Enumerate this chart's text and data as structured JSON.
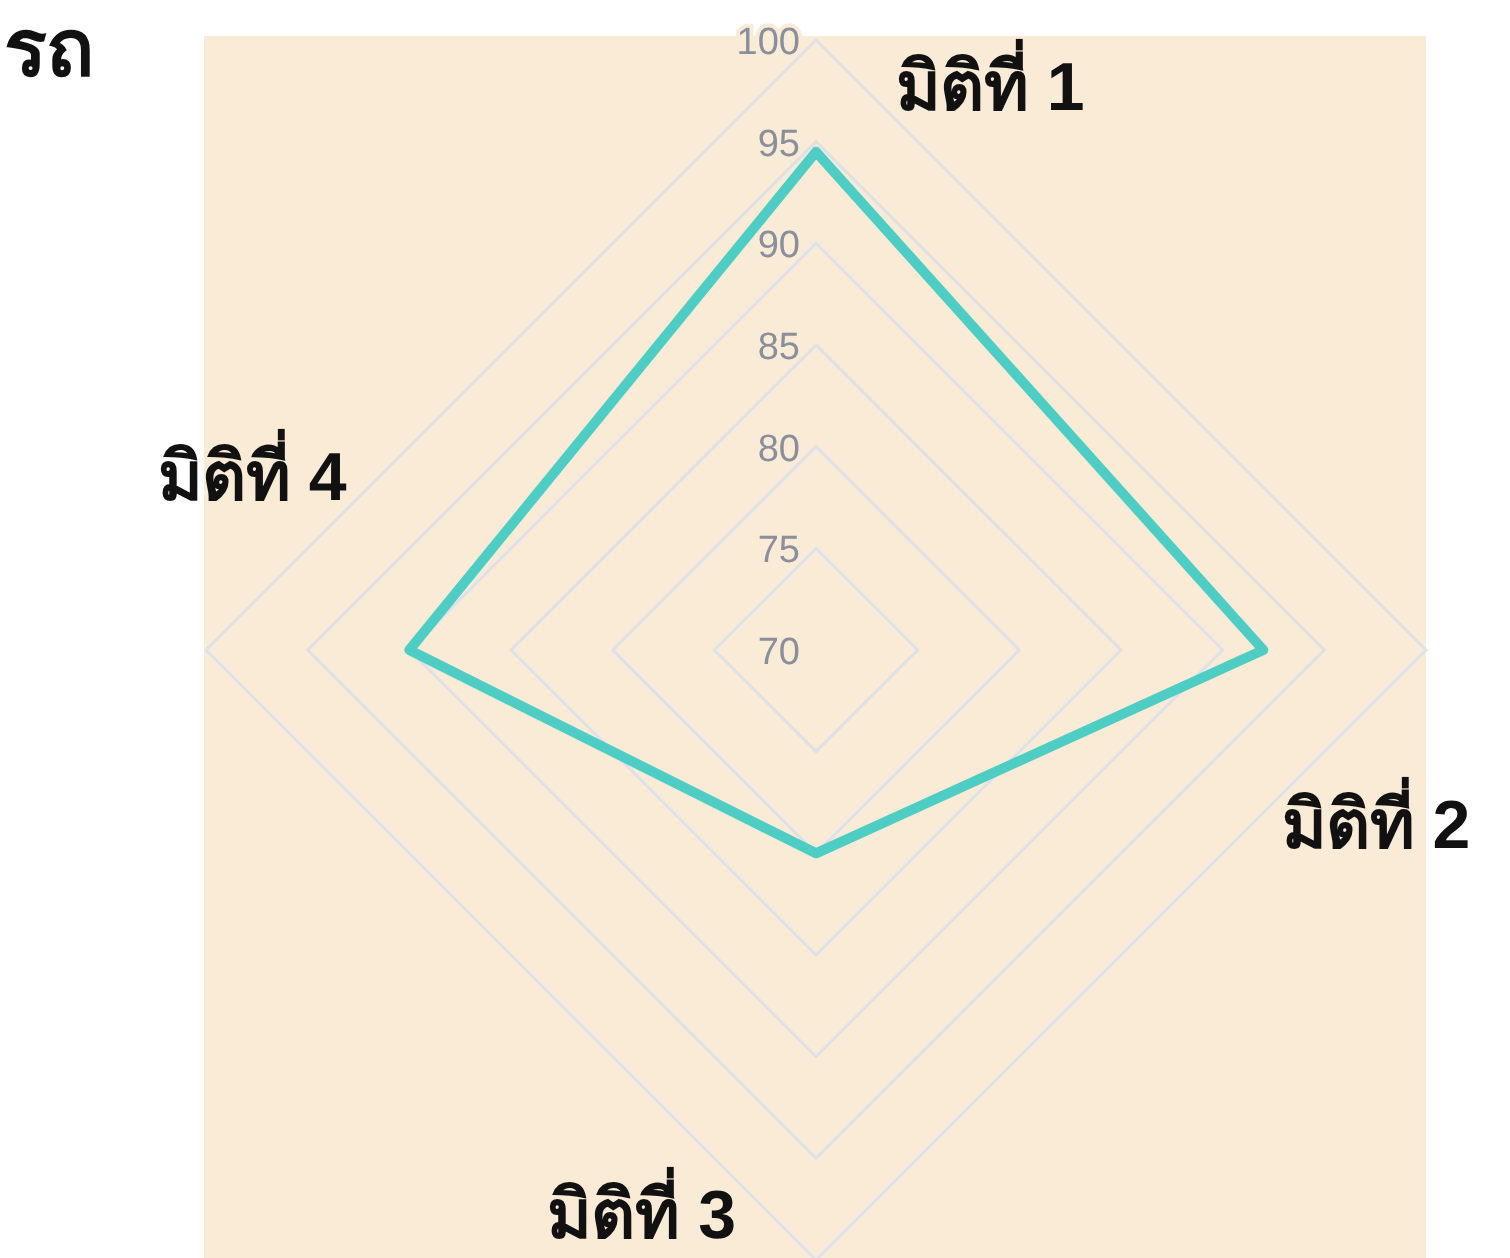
{
  "chart_data": {
    "type": "radar",
    "title": "รถ",
    "categories": [
      "มิติที่ 1",
      "มิติที่ 2",
      "มิติที่ 3",
      "มิติที่ 4"
    ],
    "series": [
      {
        "color": "#4ecdc4",
        "values": [
          94.5,
          92,
          80,
          90
        ]
      }
    ],
    "ylim": [
      70,
      100
    ],
    "yticks": [
      70,
      75,
      80,
      85,
      90,
      95,
      100
    ],
    "grid": true,
    "marker": "none"
  }
}
